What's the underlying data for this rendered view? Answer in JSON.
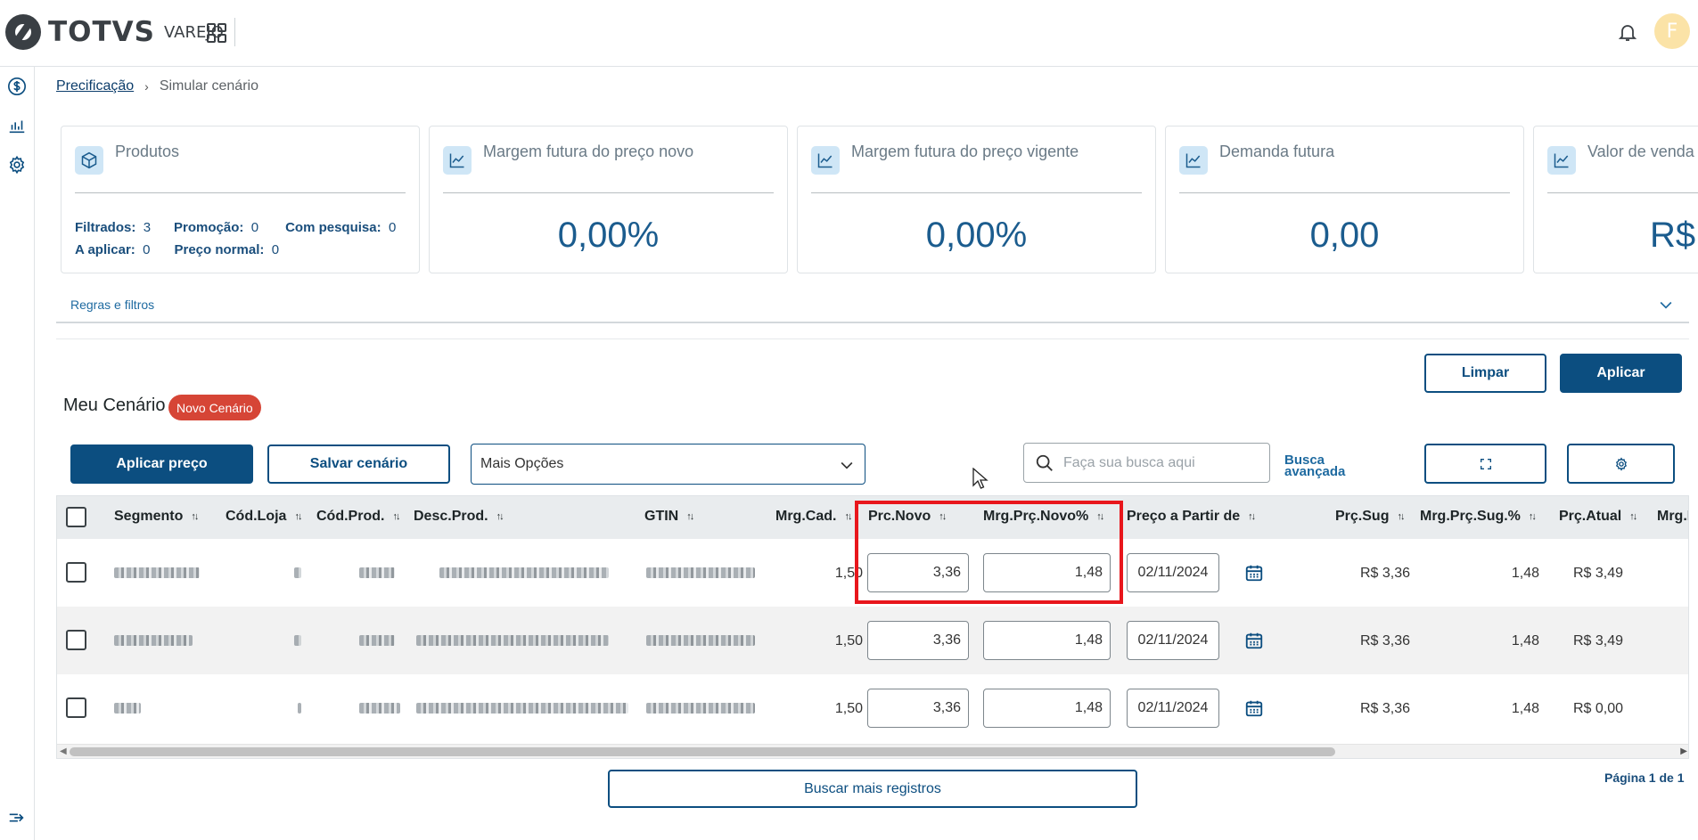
{
  "header": {
    "brand": "TOTVS",
    "product": "VAREJO",
    "avatar_initial": "F"
  },
  "breadcrumb": {
    "parent": "Precificação",
    "current": "Simular cenário"
  },
  "cards": {
    "produtos": {
      "title": "Produtos",
      "filtrados_label": "Filtrados:",
      "filtrados": "3",
      "promocao_label": "Promoção:",
      "promocao": "0",
      "com_pesquisa_label": "Com pesquisa:",
      "com_pesquisa": "0",
      "a_aplicar_label": "A aplicar:",
      "a_aplicar": "0",
      "preco_normal_label": "Preço normal:",
      "preco_normal": "0"
    },
    "margem_novo": {
      "title": "Margem futura do preço novo",
      "value": "0,00%"
    },
    "margem_vigente": {
      "title": "Margem futura do preço vigente",
      "value": "0,00%"
    },
    "demanda": {
      "title": "Demanda futura",
      "value": "0,00"
    },
    "valor_venda": {
      "title": "Valor de venda",
      "value": "R$"
    }
  },
  "filters": {
    "label": "Regras e filtros"
  },
  "actions": {
    "limpar": "Limpar",
    "aplicar": "Aplicar"
  },
  "scenario": {
    "title": "Meu Cenário",
    "badge": "Novo Cenário"
  },
  "toolbar": {
    "aplicar_preco": "Aplicar preço",
    "salvar_cenario": "Salvar cenário",
    "mais_opcoes": "Mais Opções",
    "search_placeholder": "Faça sua busca aqui",
    "busca_avancada_1": "Busca",
    "busca_avancada_2": "avançada"
  },
  "table": {
    "columns": [
      "Segmento",
      "Cód.Loja",
      "Cód.Prod.",
      "Desc.Prod.",
      "GTIN",
      "Mrg.Cad.",
      "Prc.Novo",
      "Mrg.Prç.Novo%",
      "Preço a Partir de",
      "Prç.Sug",
      "Mrg.Prç.Sug.%",
      "Prç.Atual",
      "Mrg.P"
    ],
    "rows": [
      {
        "mrg_cad": "1,50",
        "prc_novo": "3,36",
        "mrg_novo": "1,48",
        "data": "02/11/2024",
        "prc_sug": "R$ 3,36",
        "mrg_sug": "1,48",
        "prc_atual": "R$ 3,49"
      },
      {
        "mrg_cad": "1,50",
        "prc_novo": "3,36",
        "mrg_novo": "1,48",
        "data": "02/11/2024",
        "prc_sug": "R$ 3,36",
        "mrg_sug": "1,48",
        "prc_atual": "R$ 3,49"
      },
      {
        "mrg_cad": "1,50",
        "prc_novo": "3,36",
        "mrg_novo": "1,48",
        "data": "02/11/2024",
        "prc_sug": "R$ 3,36",
        "mrg_sug": "1,48",
        "prc_atual": "R$ 0,00"
      }
    ]
  },
  "footer": {
    "buscar_mais": "Buscar mais registros",
    "page_info": "Página 1 de 1"
  },
  "colors": {
    "primary": "#0c4e80",
    "accent_value": "#1b5c8e",
    "badge": "#d64536",
    "highlight": "#e8161c"
  }
}
